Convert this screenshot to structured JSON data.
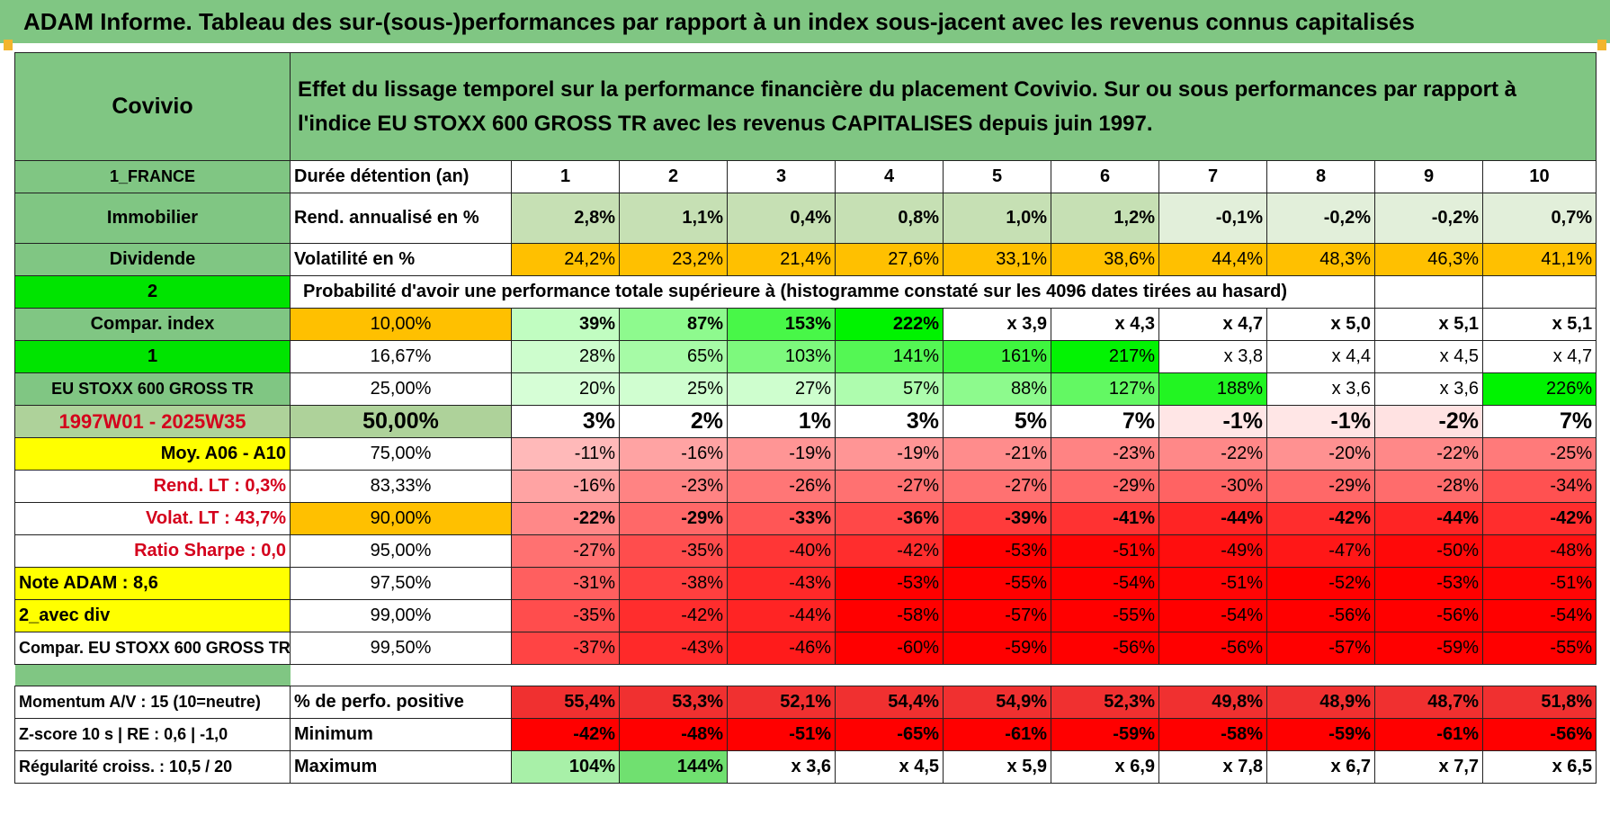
{
  "title": "ADAM Informe. Tableau des sur-(sous-)performances par rapport à un index sous-jacent avec les revenus connus capitalisés",
  "side": {
    "name": "Covivio",
    "country": "1_FRANCE",
    "sector": "Immobilier",
    "type": "Dividende",
    "num2": "2",
    "compar": "Compar. index",
    "num1": "1",
    "index": "EU STOXX 600 GROSS TR",
    "period": "1997W01 - 2025W35",
    "moy": "Moy. A06 - A10",
    "rend_lt": "Rend. LT :   0,3%",
    "volat_lt": "Volat. LT :   43,7%",
    "sharpe": "Ratio Sharpe :    0,0",
    "note": "Note ADAM : 8,6",
    "avec_div": "2_avec div",
    "compar_full": "Compar. EU STOXX 600 GROSS TR",
    "momentum": "Momentum A/V : 15 (10=neutre)",
    "zscore": "Z-score 10 s | RE : 0,6 | -1,0",
    "regularite": "Régularité croiss. : 10,5 / 20"
  },
  "description": "Effet du lissage temporel sur la performance financière du placement Covivio. Sur ou sous performances par rapport à l'indice EU STOXX 600 GROSS TR avec les revenus CAPITALISES depuis juin 1997.",
  "labels": {
    "duree": "Durée détention (an)",
    "rend": "Rend. annualisé en %",
    "volat": "Volatilité en %",
    "proba": "Probabilité d'avoir une performance totale supérieure à (histogramme constaté sur les 4096 dates tirées au hasard)",
    "perf_pos": "% de perfo. positive",
    "minimum": "Minimum",
    "maximum": "Maximum"
  },
  "years": [
    "1",
    "2",
    "3",
    "4",
    "5",
    "6",
    "7",
    "8",
    "9",
    "10"
  ],
  "rend": [
    "2,8%",
    "1,1%",
    "0,4%",
    "0,8%",
    "1,0%",
    "1,2%",
    "-0,1%",
    "-0,2%",
    "-0,2%",
    "0,7%"
  ],
  "volat": [
    "24,2%",
    "23,2%",
    "21,4%",
    "27,6%",
    "33,1%",
    "38,6%",
    "44,4%",
    "48,3%",
    "46,3%",
    "41,1%"
  ],
  "perc": [
    {
      "p": "10,00%",
      "v": [
        "39%",
        "87%",
        "153%",
        "222%",
        "x 3,9",
        "x 4,3",
        "x 4,7",
        "x 5,0",
        "x 5,1",
        "x 5,1"
      ]
    },
    {
      "p": "16,67%",
      "v": [
        "28%",
        "65%",
        "103%",
        "141%",
        "161%",
        "217%",
        "x 3,8",
        "x 4,4",
        "x 4,5",
        "x 4,7"
      ]
    },
    {
      "p": "25,00%",
      "v": [
        "20%",
        "25%",
        "27%",
        "57%",
        "88%",
        "127%",
        "188%",
        "x 3,6",
        "x 3,6",
        "226%"
      ]
    },
    {
      "p": "50,00%",
      "v": [
        "3%",
        "2%",
        "1%",
        "3%",
        "5%",
        "7%",
        "-1%",
        "-1%",
        "-2%",
        "7%"
      ]
    },
    {
      "p": "75,00%",
      "v": [
        "-11%",
        "-16%",
        "-19%",
        "-19%",
        "-21%",
        "-23%",
        "-22%",
        "-20%",
        "-22%",
        "-25%"
      ]
    },
    {
      "p": "83,33%",
      "v": [
        "-16%",
        "-23%",
        "-26%",
        "-27%",
        "-27%",
        "-29%",
        "-30%",
        "-29%",
        "-28%",
        "-34%"
      ]
    },
    {
      "p": "90,00%",
      "v": [
        "-22%",
        "-29%",
        "-33%",
        "-36%",
        "-39%",
        "-41%",
        "-44%",
        "-42%",
        "-44%",
        "-42%"
      ]
    },
    {
      "p": "95,00%",
      "v": [
        "-27%",
        "-35%",
        "-40%",
        "-42%",
        "-53%",
        "-51%",
        "-49%",
        "-47%",
        "-50%",
        "-48%"
      ]
    },
    {
      "p": "97,50%",
      "v": [
        "-31%",
        "-38%",
        "-43%",
        "-53%",
        "-55%",
        "-54%",
        "-51%",
        "-52%",
        "-53%",
        "-51%"
      ]
    },
    {
      "p": "99,00%",
      "v": [
        "-35%",
        "-42%",
        "-44%",
        "-58%",
        "-57%",
        "-55%",
        "-54%",
        "-56%",
        "-56%",
        "-54%"
      ]
    },
    {
      "p": "99,50%",
      "v": [
        "-37%",
        "-43%",
        "-46%",
        "-60%",
        "-59%",
        "-56%",
        "-56%",
        "-57%",
        "-59%",
        "-55%"
      ]
    }
  ],
  "perf_pos": [
    "55,4%",
    "53,3%",
    "52,1%",
    "54,4%",
    "54,9%",
    "52,3%",
    "49,8%",
    "48,9%",
    "48,7%",
    "51,8%"
  ],
  "minimum": [
    "-42%",
    "-48%",
    "-51%",
    "-65%",
    "-61%",
    "-59%",
    "-58%",
    "-59%",
    "-61%",
    "-56%"
  ],
  "maximum": [
    "104%",
    "144%",
    "x 3,6",
    "x 4,5",
    "x 5,9",
    "x 6,9",
    "x 7,8",
    "x 6,7",
    "x 7,7",
    "x 6,5"
  ]
}
